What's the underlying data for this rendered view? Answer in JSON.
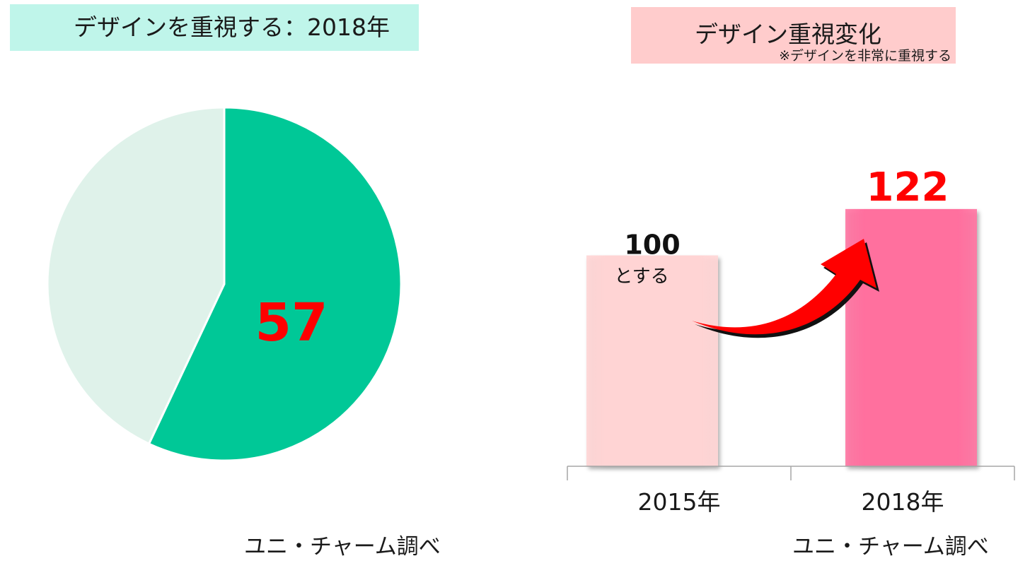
{
  "left_panel": {
    "title": "デザインを重視する：2018年",
    "source": "ユニ・チャーム調べ"
  },
  "right_panel": {
    "title": "デザイン重視変化",
    "note": "※デザインを非常に重視する",
    "source": "ユニ・チャーム調べ"
  },
  "colors": {
    "pie_main": "#00c897",
    "pie_rest": "#dff2ea",
    "value_red": "#ff0000",
    "bar_2015": "#ffd4d4",
    "bar_2018": "#ff6f9e",
    "left_title_bg": "#bff5ea",
    "right_title_bg": "#ffcccc"
  },
  "chart_data": [
    {
      "type": "pie",
      "title": "デザインを重視する：2018年",
      "values": [
        57,
        43
      ],
      "data_label": "57"
    },
    {
      "type": "bar",
      "title": "デザイン重視変化",
      "categories": [
        "2015年",
        "2018年"
      ],
      "values": [
        100,
        122
      ],
      "data_labels": [
        "100",
        "122"
      ],
      "annotation": "とする",
      "ylim": [
        0,
        130
      ],
      "grid": false
    }
  ]
}
